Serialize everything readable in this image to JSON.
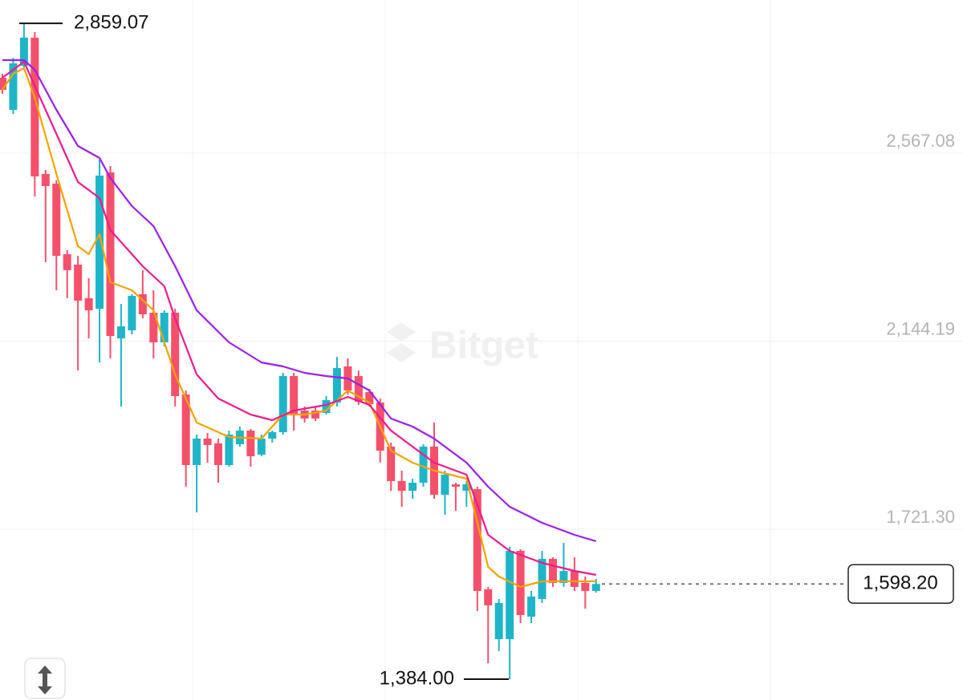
{
  "chart_data": {
    "type": "candlestick",
    "ylim": [
      1337.2,
      2911.5
    ],
    "yticks": [
      {
        "value": 2567.08,
        "label": "2,567.08"
      },
      {
        "value": 2144.19,
        "label": "2,144.19"
      },
      {
        "value": 1721.3,
        "label": "1,721.30"
      }
    ],
    "grid": true,
    "up_color": "#1fb5c9",
    "down_color": "#f5506b",
    "watermark": "Bitget",
    "open": [
      2736.6,
      2664.5,
      2763.6,
      2826.8,
      2520.2,
      2498.5,
      2339.8,
      2316.4,
      2240.7,
      2217.2,
      2523.8,
      2150.5,
      2168.5,
      2249.7,
      2208.2,
      2141.5,
      2208.2,
      2024.2,
      1865.6,
      1925.1,
      1914.3,
      1865.6,
      1912.5,
      1943.1,
      1889.0,
      1925.1,
      1939.5,
      2065.7,
      1988.2,
      1988.2,
      1982.8,
      2006.2,
      2087.4,
      2065.7,
      2029.7,
      2006.2,
      1907.1,
      1829.5,
      1807.8,
      1825.9,
      1907.1,
      1798.8,
      1822.3,
      1807.8,
      1811.5,
      1586.1,
      1474.2,
      1474.2,
      1672.6,
      1524.7,
      1564.4,
      1654.6,
      1600.5,
      1627.5,
      1600.5,
      1582.5
    ],
    "high": [
      2745.6,
      2781.7,
      2859.07,
      2839.4,
      2529.2,
      2505.8,
      2348.9,
      2336.2,
      2285.7,
      2552.6,
      2538.2,
      2228.0,
      2249.7,
      2303.8,
      2258.7,
      2213.6,
      2217.2,
      2033.3,
      1934.1,
      1937.7,
      1925.1,
      1943.1,
      1952.1,
      1946.7,
      1934.1,
      1943.1,
      2072.9,
      2072.9,
      1997.2,
      1997.2,
      2020.6,
      2109.0,
      2105.4,
      2078.3,
      2036.9,
      2015.2,
      1916.0,
      1852.9,
      1834.9,
      1912.5,
      1961.1,
      1852.9,
      1825.9,
      1829.5,
      1816.9,
      1591.5,
      1564.4,
      1681.6,
      1676.2,
      1582.5,
      1672.6,
      1658.2,
      1690.6,
      1658.2,
      1614.9,
      1609.5
    ],
    "low": [
      2700.5,
      2655.4,
      2758.2,
      2469.7,
      2321.8,
      2258.7,
      2240.7,
      2078.3,
      2150.5,
      2096.4,
      2105.4,
      1997.2,
      2159.5,
      2195.6,
      2105.4,
      2132.5,
      1997.2,
      1816.9,
      1759.1,
      1871.0,
      1825.9,
      1862.0,
      1907.1,
      1862.0,
      1885.4,
      1916.0,
      1934.1,
      1943.1,
      1961.1,
      1964.7,
      1979.2,
      1997.2,
      2024.2,
      2000.8,
      1997.2,
      1871.0,
      1807.8,
      1771.8,
      1789.8,
      1816.9,
      1789.8,
      1753.7,
      1762.7,
      1771.8,
      1537.3,
      1420.1,
      1447.2,
      1384,
      1510.3,
      1510.3,
      1555.4,
      1591.5,
      1591.5,
      1582.5,
      1542.8,
      1578.8
    ],
    "close": [
      2709.5,
      2769.1,
      2826.8,
      2514.8,
      2493.1,
      2336.2,
      2303.8,
      2235.3,
      2213.6,
      2516.6,
      2155.9,
      2177.5,
      2246.1,
      2204.6,
      2141.5,
      2208.2,
      2020.6,
      1865.6,
      1925.1,
      1910.7,
      1865.6,
      1934.1,
      1943.1,
      1885.4,
      1925.1,
      1939.5,
      2065.7,
      1979.2,
      1970.2,
      1970.2,
      2011.6,
      2083.7,
      2033.3,
      2008.0,
      2002.6,
      1898.0,
      1829.5,
      1807.8,
      1825.9,
      1907.1,
      1798.8,
      1843.9,
      1816.9,
      1822.3,
      1582.5,
      1550.0,
      1555.4,
      1672.6,
      1528.3,
      1569.8,
      1654.6,
      1600.5,
      1627.5,
      1591.5,
      1582.5,
      1598.2
    ],
    "series": [
      {
        "color": "#f5a300",
        "x": [
          0,
          1,
          2,
          3,
          5,
          7,
          8,
          9,
          10,
          12,
          14,
          16,
          18,
          21,
          24,
          26,
          28,
          30,
          32,
          34,
          36,
          38,
          40,
          43,
          45,
          46,
          48,
          50,
          53,
          55
        ],
        "values": [
          2709.5,
          2745.6,
          2758.2,
          2691.5,
          2520.2,
          2357.9,
          2339.8,
          2384.9,
          2276.7,
          2258.7,
          2213.6,
          2069.3,
          1961.1,
          1928.7,
          1925.1,
          1979.2,
          1979.2,
          1988.2,
          2033.3,
          2006.2,
          1898.0,
          1871.0,
          1852.9,
          1834.9,
          1636.5,
          1614.9,
          1591.5,
          1604.1,
          1604.1,
          1604.1
        ]
      },
      {
        "color": "#ec1b8f",
        "x": [
          0,
          2,
          3,
          5,
          7,
          9,
          10,
          12,
          13,
          15,
          16,
          18,
          20,
          23,
          25,
          27,
          30,
          32,
          34,
          36,
          38,
          40,
          43,
          45,
          47,
          50,
          53,
          55
        ],
        "values": [
          2736.6,
          2772.7,
          2718.6,
          2610.4,
          2502.2,
          2466.1,
          2394.0,
          2339.8,
          2312.8,
          2267.7,
          2195.6,
          2069.3,
          2015.2,
          1979.2,
          1966.5,
          1988.2,
          2000.8,
          2018.8,
          2000.8,
          1943.1,
          1907.1,
          1871.0,
          1843.9,
          1708.7,
          1672.6,
          1645.5,
          1627.5,
          1618.5
        ]
      },
      {
        "color": "#9b1fe8",
        "x": [
          0,
          2,
          3,
          5,
          7,
          9,
          10,
          12,
          14,
          16,
          18,
          21,
          24,
          26,
          28,
          30,
          32,
          34,
          36,
          38,
          40,
          43,
          45,
          47,
          50,
          53,
          55
        ],
        "values": [
          2776.3,
          2776.3,
          2754.6,
          2664.5,
          2583.3,
          2556.3,
          2511.2,
          2448.1,
          2403.0,
          2312.8,
          2213.6,
          2141.5,
          2096.4,
          2087.4,
          2072.9,
          2065.7,
          2060.3,
          2033.3,
          1970.2,
          1952.1,
          1925.1,
          1871.0,
          1816.9,
          1771.8,
          1735.7,
          1708.7,
          1694.2
        ]
      }
    ],
    "max_label": {
      "value": 2859.07,
      "label": "2,859.07"
    },
    "min_label": {
      "value": 1384.0,
      "label": "1,384.00"
    },
    "last_price": {
      "value": 1598.2,
      "label": "1,598.20"
    }
  }
}
